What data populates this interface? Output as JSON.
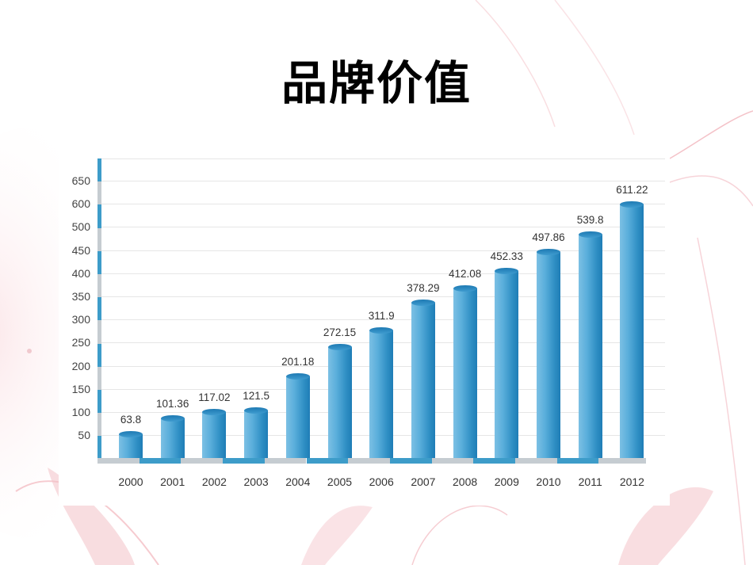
{
  "slide": {
    "title": "品牌价值"
  },
  "colors": {
    "bar_dark": "#1f7db6",
    "bar_light": "#7cc0e4",
    "axis_blue": "#3d9cc9",
    "axis_gray": "#c5ccd1",
    "grid": "#e6e6e6",
    "background_accent": "#f2b8bf"
  },
  "chart_data": {
    "type": "bar",
    "title": "品牌价值",
    "xlabel": "",
    "ylabel": "",
    "categories": [
      "2000",
      "2001",
      "2002",
      "2003",
      "2004",
      "2005",
      "2006",
      "2007",
      "2008",
      "2009",
      "2010",
      "2011",
      "2012"
    ],
    "values": [
      63.8,
      101.36,
      117.02,
      121.5,
      201.18,
      272.15,
      311.9,
      378.29,
      412.08,
      452.33,
      497.86,
      539.8,
      611.22
    ],
    "value_labels": [
      "63.8",
      "101.36",
      "117.02",
      "121.5",
      "201.18",
      "272.15",
      "311.9",
      "378.29",
      "412.08",
      "452.33",
      "497.86",
      "539.8",
      "611.22"
    ],
    "y_tick_labels": [
      "650",
      "600",
      "500",
      "450",
      "400",
      "350",
      "300",
      "250",
      "200",
      "150",
      "100",
      "50"
    ],
    "ylim": [
      0,
      700
    ],
    "grid": true,
    "legend": null,
    "style": "3d-cylinder"
  }
}
